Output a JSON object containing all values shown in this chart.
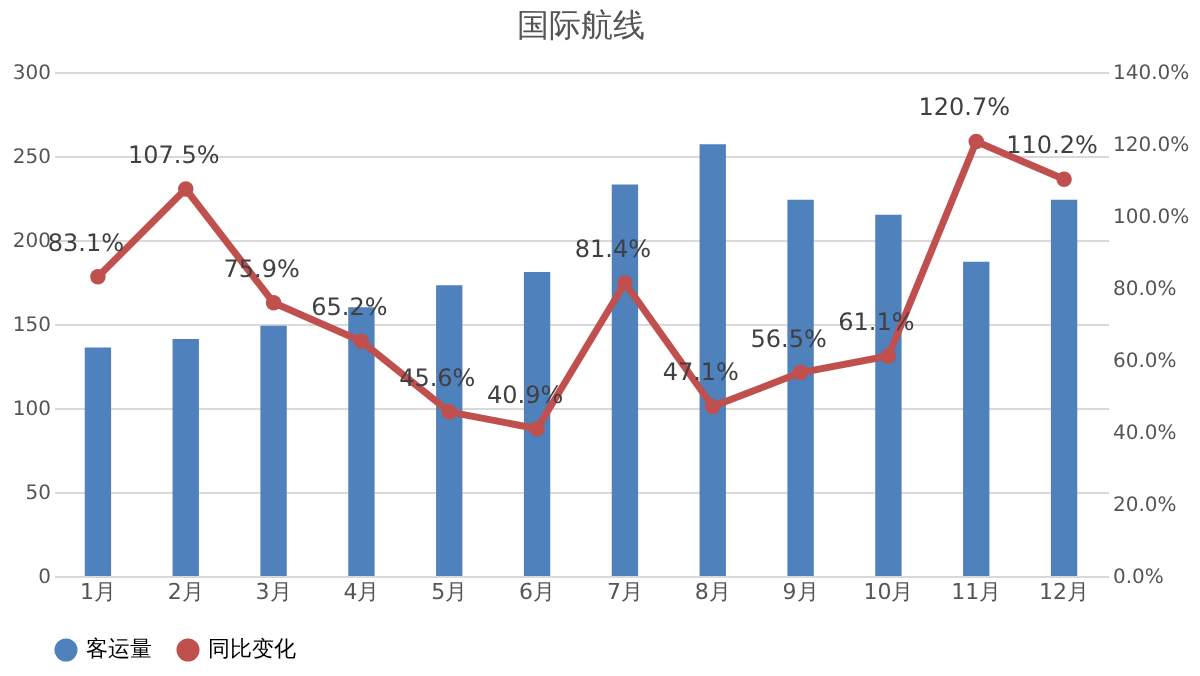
{
  "chart_data": {
    "type": "bar",
    "title": "国际航线",
    "categories": [
      "1月",
      "2月",
      "3月",
      "4月",
      "5月",
      "6月",
      "7月",
      "8月",
      "9月",
      "10月",
      "11月",
      "12月"
    ],
    "series": [
      {
        "name": "客运量",
        "color": "#4f81bd",
        "values": [
          136,
          141,
          149,
          160,
          173,
          181,
          233,
          257,
          224,
          215,
          187,
          224
        ]
      },
      {
        "name": "同比变化",
        "type": "line",
        "axis": "y2",
        "color": "#c0504d",
        "marker": "circle",
        "values": [
          83.1,
          107.5,
          75.9,
          65.2,
          45.6,
          40.9,
          81.4,
          47.1,
          56.5,
          61.1,
          120.7,
          110.2
        ],
        "value_labels": [
          "83.1%",
          "107.5%",
          "75.9%",
          "65.2%",
          "45.6%",
          "40.9%",
          "81.4%",
          "47.1%",
          "56.5%",
          "61.1%",
          "120.7%",
          "110.2%"
        ]
      }
    ],
    "ylim": [
      0,
      300
    ],
    "yticks": [
      0,
      50,
      100,
      150,
      200,
      250,
      300
    ],
    "y2lim": [
      0,
      140
    ],
    "y2ticks": [
      {
        "value": 0,
        "label": "0.0%"
      },
      {
        "value": 20,
        "label": "20.0%"
      },
      {
        "value": 40,
        "label": "40.0%"
      },
      {
        "value": 60,
        "label": "60.0%"
      },
      {
        "value": 80,
        "label": "80.0%"
      },
      {
        "value": 100,
        "label": "100.0%"
      },
      {
        "value": 120,
        "label": "120.0%"
      },
      {
        "value": 140,
        "label": "140.0%"
      }
    ],
    "grid": "y",
    "legend": "bottom"
  }
}
